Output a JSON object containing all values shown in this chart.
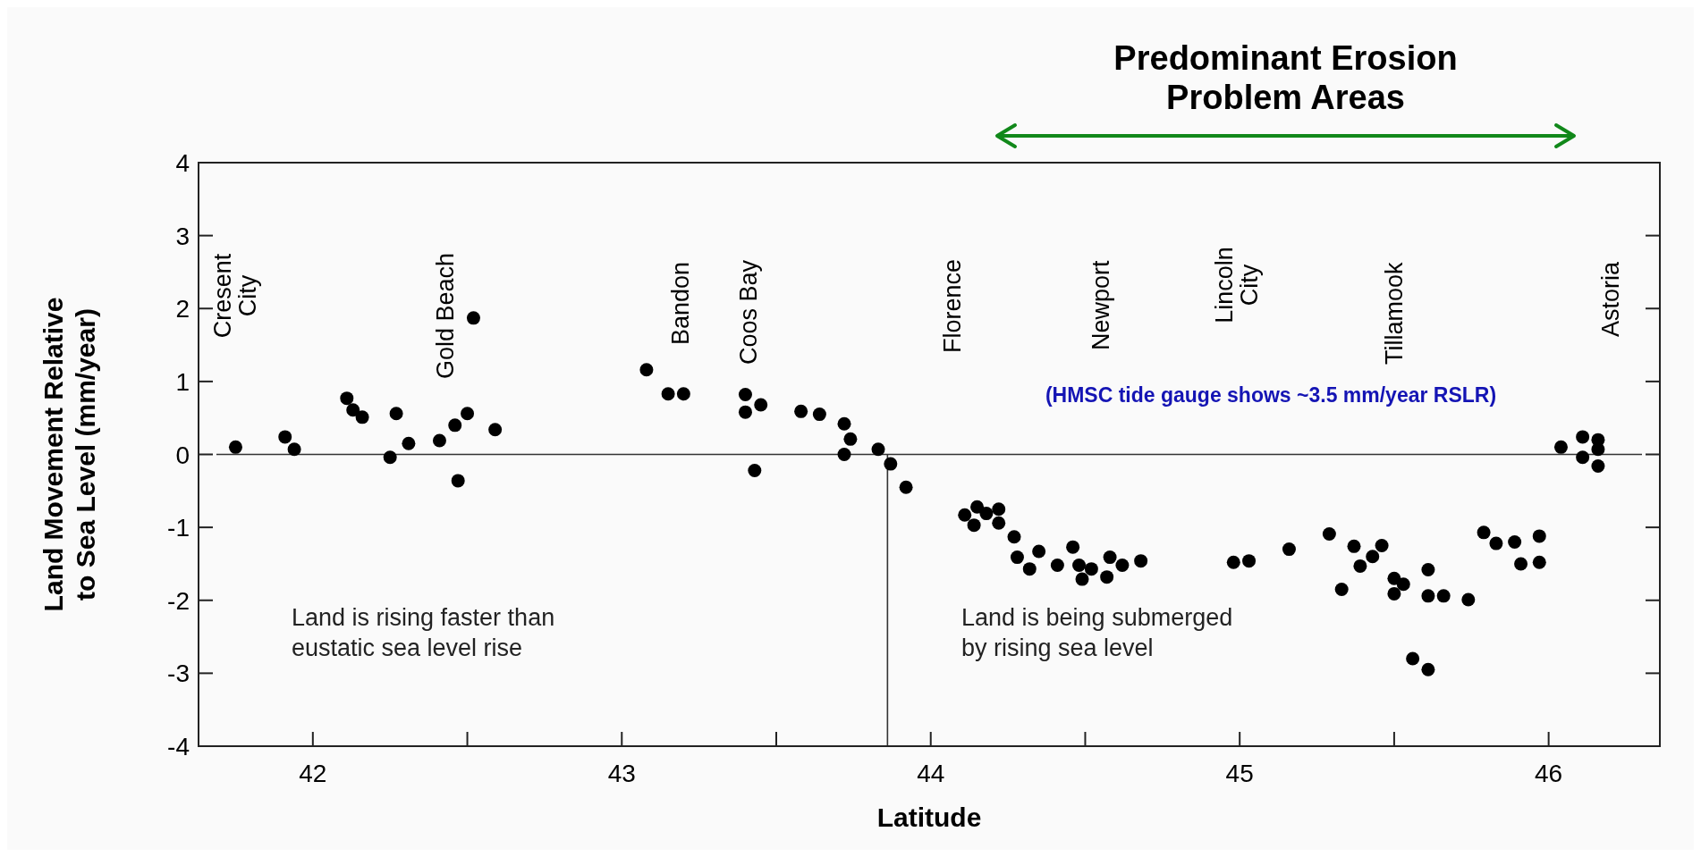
{
  "chart_data": {
    "type": "scatter",
    "xlabel": "Latitude",
    "ylabel": "Land Movement Relative\nto Sea Level (mm/year)",
    "xlim": [
      41.63,
      46.36
    ],
    "ylim": [
      -4,
      4
    ],
    "xticks": [
      42,
      {
        "value": 42.5,
        "label": null
      },
      43,
      {
        "value": 43.5,
        "label": null
      },
      44,
      {
        "value": 44.5,
        "label": null
      },
      45,
      {
        "value": 45.5,
        "label": null
      },
      46
    ],
    "yticks": [
      -4,
      -3,
      -2,
      -1,
      0,
      1,
      2,
      3,
      4
    ],
    "grid": false,
    "marker": "circle",
    "series": [
      {
        "color": "#000000",
        "x": [
          41.75,
          41.91,
          41.94,
          42.11,
          42.13,
          42.16,
          42.25,
          42.27,
          42.31,
          42.41,
          42.46,
          42.47,
          42.5,
          42.52,
          42.59,
          43.08,
          43.15,
          43.2,
          43.4,
          43.4,
          43.45,
          43.43,
          43.58,
          43.64,
          43.72,
          43.74,
          43.72,
          43.83,
          43.87,
          43.92,
          44.11,
          44.14,
          44.15,
          44.18,
          44.22,
          44.22,
          44.27,
          44.28,
          44.32,
          44.35,
          44.41,
          44.46,
          44.48,
          44.49,
          44.52,
          44.57,
          44.58,
          44.62,
          44.68,
          44.98,
          45.03,
          45.16,
          45.29,
          45.33,
          45.37,
          45.39,
          45.43,
          45.46,
          45.5,
          45.5,
          45.53,
          45.56,
          45.61,
          45.61,
          45.61,
          45.66,
          45.74,
          45.79,
          45.83,
          45.89,
          45.97,
          45.91,
          45.97,
          46.04,
          46.11,
          46.11,
          46.16,
          46.16,
          46.16
        ],
        "values": [
          0.1,
          0.24,
          0.07,
          0.77,
          0.61,
          0.51,
          -0.04,
          0.56,
          0.15,
          0.19,
          0.4,
          -0.36,
          0.56,
          1.87,
          0.34,
          1.16,
          0.83,
          0.83,
          0.82,
          0.58,
          0.68,
          -0.22,
          0.59,
          0.55,
          0.42,
          0.21,
          0.0,
          0.07,
          -0.13,
          -0.45,
          -0.83,
          -0.97,
          -0.72,
          -0.81,
          -0.75,
          -0.94,
          -1.13,
          -1.41,
          -1.57,
          -1.33,
          -1.52,
          -1.27,
          -1.52,
          -1.71,
          -1.57,
          -1.68,
          -1.41,
          -1.52,
          -1.46,
          -1.48,
          -1.46,
          -1.3,
          -1.09,
          -1.85,
          -1.26,
          -1.53,
          -1.4,
          -1.25,
          -1.7,
          -1.91,
          -1.78,
          -2.8,
          -2.95,
          -1.58,
          -1.94,
          -1.94,
          -1.99,
          -1.07,
          -1.22,
          -1.2,
          -1.12,
          -1.5,
          -1.48,
          0.1,
          0.24,
          -0.04,
          0.2,
          0.07,
          -0.16
        ]
      }
    ],
    "ref_lines": [
      {
        "axis": "y",
        "value": 0
      },
      {
        "axis": "x",
        "value": 43.86
      }
    ],
    "title": "Predominant Erosion\nProblem Areas",
    "annotations": [
      "Cresent\nCity",
      "Gold Beach",
      "Bandon",
      "Coos Bay",
      "Florence",
      "Newport",
      "Lincoln\nCity",
      "Tillamook",
      "Astoria",
      "Land is rising faster than\neustatic sea level rise",
      "Land is being submerged\nby rising sea level",
      "(HMSC tide gauge shows ~3.5 mm/year RSLR)"
    ]
  }
}
